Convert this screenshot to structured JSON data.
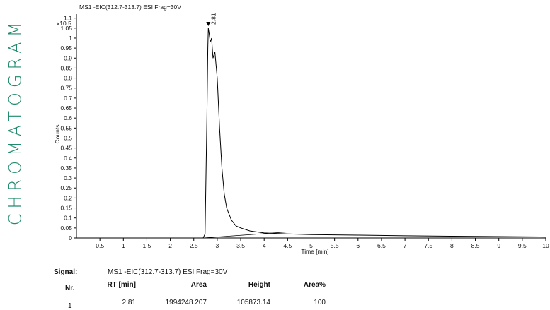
{
  "side_title": "CHROMATOGRAM",
  "chart_data": {
    "type": "line",
    "title": "MS1 -EIC(312.7-313.7) ESI Frag=30V",
    "xlabel": "Time [min]",
    "ylabel": "Counts",
    "y_multiplier": "x10 5",
    "xlim": [
      0,
      10
    ],
    "ylim": [
      0,
      1.12
    ],
    "xticks": [
      0.5,
      1,
      1.5,
      2,
      2.5,
      3,
      3.5,
      4,
      4.5,
      5,
      5.5,
      6,
      6.5,
      7,
      7.5,
      8,
      8.5,
      9,
      9.5,
      10
    ],
    "yticks": [
      0,
      0.05,
      0.1,
      0.15,
      0.2,
      0.25,
      0.3,
      0.35,
      0.4,
      0.45,
      0.5,
      0.55,
      0.6,
      0.65,
      0.7,
      0.75,
      0.8,
      0.85,
      0.9,
      0.95,
      1,
      1.05,
      1.1
    ],
    "grid": false,
    "series": [
      {
        "x": [
          0,
          2.5,
          2.7,
          2.74,
          2.78,
          2.8,
          2.81,
          2.83,
          2.85,
          2.88,
          2.91,
          2.95,
          3.0,
          3.05,
          3.1,
          3.15,
          3.2,
          3.3,
          3.4,
          3.5,
          3.7,
          4.0,
          4.5,
          5.0,
          6.0,
          7.0,
          8.0,
          9.0,
          10.0
        ],
        "values": [
          0,
          0,
          0,
          0.02,
          0.6,
          0.95,
          1.05,
          1.02,
          0.98,
          1.0,
          0.9,
          0.93,
          0.8,
          0.55,
          0.35,
          0.22,
          0.15,
          0.09,
          0.06,
          0.05,
          0.035,
          0.025,
          0.02,
          0.017,
          0.014,
          0.011,
          0.009,
          0.007,
          0.005
        ]
      }
    ],
    "baseline": {
      "x": [
        2.7,
        4.5
      ],
      "values": [
        0,
        0.03
      ]
    },
    "annotations": [
      {
        "x": 2.81,
        "y": 1.06,
        "text": "2.81"
      }
    ]
  },
  "table": {
    "signal_label": "Signal:",
    "signal_value": "MS1 -EIC(312.7-313.7) ESI Frag=30V",
    "headers": [
      "Nr.",
      "RT [min]",
      "Area",
      "Height",
      "Area%"
    ],
    "rows": [
      [
        "1",
        "2.81",
        "1994248.207",
        "105873.14",
        "100"
      ]
    ]
  }
}
